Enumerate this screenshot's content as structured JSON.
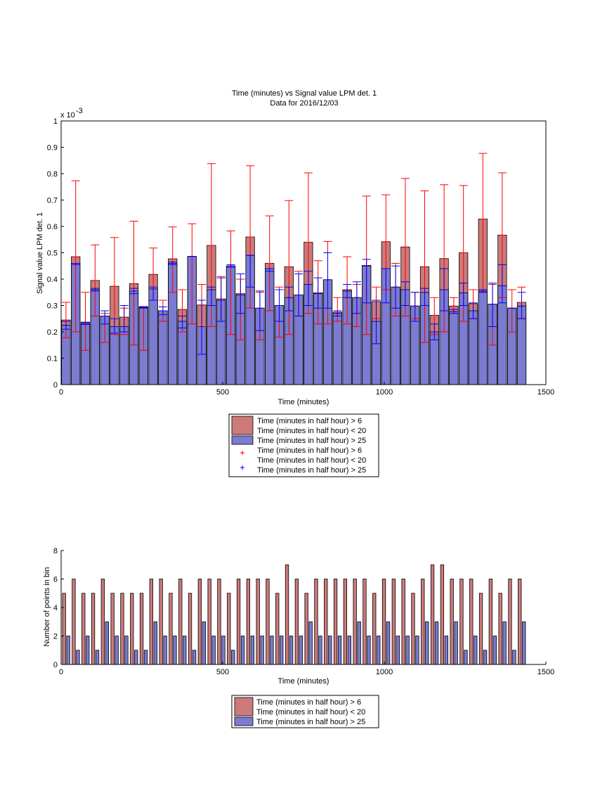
{
  "colors": {
    "red_fill": "#cc7a7a",
    "blue_fill": "#7b7bd1",
    "red_err": "#ff0000",
    "blue_err": "#0000ff",
    "axis": "#000000"
  },
  "chart_data": [
    {
      "type": "bar",
      "title": "Time (minutes) vs Signal value LPM det. 1",
      "subtitle": "Data for 2016/12/03",
      "xlabel": "Time (minutes)",
      "ylabel": "Signal value LPM det. 1",
      "exponent_label": "x 10",
      "exponent_power": "-3",
      "xlim": [
        0,
        1500
      ],
      "ylim": [
        0,
        1
      ],
      "xticks": [
        "0",
        "500",
        "1000",
        "1500"
      ],
      "yticks": [
        "0",
        "0.1",
        "0.2",
        "0.3",
        "0.4",
        "0.5",
        "0.6",
        "0.7",
        "0.8",
        "0.9",
        "1"
      ],
      "x": [
        15,
        45,
        75,
        105,
        135,
        165,
        195,
        225,
        255,
        285,
        315,
        345,
        375,
        405,
        435,
        465,
        495,
        525,
        555,
        585,
        615,
        645,
        675,
        705,
        735,
        765,
        795,
        825,
        855,
        885,
        915,
        945,
        975,
        1005,
        1035,
        1065,
        1095,
        1125,
        1155,
        1185,
        1215,
        1245,
        1275,
        1305,
        1335,
        1365,
        1395,
        1425
      ],
      "series": [
        {
          "name": "Time (minutes in half hour) > 6\nTime (minutes in half hour) < 20",
          "values": [
            0.245,
            0.485,
            0.237,
            0.395,
            0.26,
            0.373,
            0.256,
            0.383,
            0.295,
            0.418,
            0.28,
            0.477,
            0.285,
            0.486,
            0.302,
            0.528,
            0.325,
            0.45,
            0.345,
            0.56,
            0.29,
            0.46,
            0.3,
            0.447,
            0.34,
            0.54,
            0.348,
            0.397,
            0.275,
            0.36,
            0.33,
            0.452,
            0.315,
            0.542,
            0.37,
            0.522,
            0.298,
            0.447,
            0.263,
            0.478,
            0.298,
            0.5,
            0.307,
            0.628,
            0.305,
            0.567,
            0.29,
            0.312
          ],
          "err_low": [
            0.178,
            0.2,
            0.13,
            0.26,
            0.16,
            0.19,
            0.19,
            0.15,
            0.13,
            0.32,
            0.24,
            0.35,
            0.2,
            0.23,
            0.22,
            0.22,
            0.24,
            0.19,
            0.17,
            0.29,
            0.17,
            0.28,
            0.18,
            0.19,
            0.26,
            0.27,
            0.23,
            0.23,
            0.24,
            0.23,
            0.22,
            0.19,
            0.25,
            0.36,
            0.26,
            0.26,
            0.25,
            0.16,
            0.19,
            0.2,
            0.27,
            0.24,
            0.25,
            0.35,
            0.15,
            0.33,
            0.2,
            0.25
          ],
          "err_high": [
            0.312,
            0.773,
            0.35,
            0.53,
            0.27,
            0.558,
            0.29,
            0.62,
            0.29,
            0.518,
            0.32,
            0.598,
            0.36,
            0.61,
            0.38,
            0.838,
            0.41,
            0.583,
            0.4,
            0.83,
            0.35,
            0.64,
            0.37,
            0.698,
            0.43,
            0.803,
            0.47,
            0.543,
            0.33,
            0.485,
            0.38,
            0.715,
            0.37,
            0.72,
            0.46,
            0.782,
            0.35,
            0.735,
            0.33,
            0.758,
            0.33,
            0.755,
            0.36,
            0.877,
            0.38,
            0.803,
            0.36,
            0.37
          ]
        },
        {
          "name": "Time (minutes in half hour) > 25",
          "values": [
            0.225,
            0.46,
            0.232,
            0.36,
            0.26,
            0.22,
            0.22,
            0.355,
            0.293,
            0.363,
            0.28,
            0.46,
            0.24,
            0.486,
            0.22,
            0.36,
            0.32,
            0.45,
            0.34,
            0.49,
            0.29,
            0.44,
            0.3,
            0.33,
            0.34,
            0.38,
            0.345,
            0.398,
            0.27,
            0.355,
            0.33,
            0.45,
            0.24,
            0.44,
            0.37,
            0.36,
            0.298,
            0.35,
            0.2,
            0.36,
            0.277,
            0.348,
            0.28,
            0.355,
            0.305,
            0.375,
            0.29,
            0.298
          ],
          "err_low": [
            0.21,
            0.455,
            0.228,
            0.355,
            0.23,
            0.195,
            0.2,
            0.345,
            0.29,
            0.32,
            0.265,
            0.455,
            0.215,
            0.486,
            0.115,
            0.3,
            0.24,
            0.445,
            0.27,
            0.37,
            0.205,
            0.43,
            0.24,
            0.28,
            0.26,
            0.3,
            0.29,
            0.29,
            0.26,
            0.33,
            0.27,
            0.31,
            0.155,
            0.31,
            0.29,
            0.3,
            0.24,
            0.3,
            0.17,
            0.28,
            0.27,
            0.3,
            0.25,
            0.35,
            0.22,
            0.31,
            0.29,
            0.25
          ],
          "err_high": [
            0.24,
            0.46,
            0.236,
            0.365,
            0.28,
            0.25,
            0.3,
            0.365,
            0.296,
            0.37,
            0.295,
            0.465,
            0.26,
            0.486,
            0.32,
            0.37,
            0.405,
            0.455,
            0.42,
            0.49,
            0.355,
            0.44,
            0.36,
            0.37,
            0.42,
            0.43,
            0.405,
            0.5,
            0.28,
            0.38,
            0.39,
            0.475,
            0.32,
            0.44,
            0.45,
            0.39,
            0.35,
            0.365,
            0.23,
            0.44,
            0.285,
            0.385,
            0.31,
            0.36,
            0.385,
            0.455,
            0.29,
            0.35
          ]
        }
      ],
      "legend": {
        "placement": "below",
        "entries": [
          {
            "kind": "patch",
            "color": "#cc7a7a",
            "lines": [
              "Time (minutes in half hour) > 6",
              "Time (minutes in half hour) < 20"
            ]
          },
          {
            "kind": "patch",
            "color": "#7b7bd1",
            "lines": [
              "Time (minutes in half hour) > 25"
            ]
          },
          {
            "kind": "plus",
            "color": "#ff0000",
            "lines": [
              "Time (minutes in half hour) > 6",
              "Time (minutes in half hour) < 20"
            ]
          },
          {
            "kind": "plus",
            "color": "#0000ff",
            "lines": [
              "Time (minutes in half hour) > 25"
            ]
          }
        ]
      }
    },
    {
      "type": "bar",
      "title": "",
      "xlabel": "Time (minutes)",
      "ylabel": "Number of points in bin",
      "xlim": [
        0,
        1500
      ],
      "ylim": [
        0,
        8
      ],
      "xticks": [
        "0",
        "500",
        "1000",
        "1500"
      ],
      "yticks": [
        "0",
        "2",
        "4",
        "6",
        "8"
      ],
      "x": [
        15,
        45,
        75,
        105,
        135,
        165,
        195,
        225,
        255,
        285,
        315,
        345,
        375,
        405,
        435,
        465,
        495,
        525,
        555,
        585,
        615,
        645,
        675,
        705,
        735,
        765,
        795,
        825,
        855,
        885,
        915,
        945,
        975,
        1005,
        1035,
        1065,
        1095,
        1125,
        1155,
        1185,
        1215,
        1245,
        1275,
        1305,
        1335,
        1365,
        1395,
        1425
      ],
      "series": [
        {
          "name": "Time (minutes in half hour) > 6\nTime (minutes in half hour) < 20",
          "values": [
            5,
            6,
            5,
            5,
            6,
            5,
            5,
            5,
            5,
            6,
            6,
            5,
            6,
            5,
            6,
            6,
            6,
            5,
            6,
            6,
            6,
            6,
            5,
            7,
            6,
            5,
            6,
            6,
            6,
            6,
            6,
            6,
            5,
            6,
            6,
            6,
            5,
            6,
            7,
            7,
            6,
            6,
            6,
            5,
            6,
            5,
            6,
            6
          ]
        },
        {
          "name": "Time (minutes in half hour) > 25",
          "values": [
            2,
            1,
            2,
            1,
            3,
            2,
            2,
            1,
            1,
            3,
            2,
            2,
            2,
            1,
            3,
            2,
            2,
            1,
            2,
            2,
            2,
            2,
            2,
            2,
            2,
            3,
            2,
            2,
            2,
            2,
            3,
            2,
            2,
            3,
            2,
            2,
            2,
            3,
            3,
            2,
            3,
            1,
            2,
            1,
            2,
            3,
            1,
            3
          ]
        }
      ],
      "legend": {
        "placement": "below",
        "entries": [
          {
            "kind": "patch",
            "color": "#cc7a7a",
            "lines": [
              "Time (minutes in half hour) > 6",
              "Time (minutes in half hour) < 20"
            ]
          },
          {
            "kind": "patch",
            "color": "#7b7bd1",
            "lines": [
              "Time (minutes in half hour) > 25"
            ]
          }
        ]
      }
    }
  ]
}
